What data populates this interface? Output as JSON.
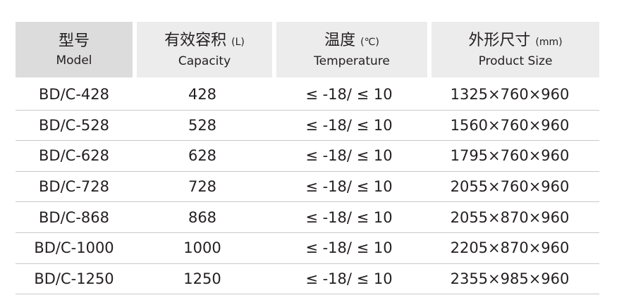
{
  "headers": [
    {
      "zh": "型号",
      "unit": "",
      "en": "Model"
    },
    {
      "zh": "有效容积",
      "unit": "(L)",
      "en": "Capacity"
    },
    {
      "zh": "温度",
      "unit": "(℃)",
      "en": "Temperature"
    },
    {
      "zh": "外形尺寸",
      "unit": "(mm)",
      "en": "Product Size"
    }
  ],
  "rows": [
    [
      "BD/C-428",
      "428",
      "≤ -18/ ≤ 10",
      "1325×760×960"
    ],
    [
      "BD/C-528",
      "528",
      "≤ -18/ ≤ 10",
      "1560×760×960"
    ],
    [
      "BD/C-628",
      "628",
      "≤ -18/ ≤ 10",
      "1795×760×960"
    ],
    [
      "BD/C-728",
      "728",
      "≤ -18/ ≤ 10",
      "2055×760×960"
    ],
    [
      "BD/C-868",
      "868",
      "≤ -18/ ≤ 10",
      "2055×870×960"
    ],
    [
      "BD/C-1000",
      "1000",
      "≤ -18/ ≤ 10",
      "2205×870×960"
    ],
    [
      "BD/C-1250",
      "1250",
      "≤ -18/ ≤ 10",
      "2355×985×960"
    ]
  ]
}
